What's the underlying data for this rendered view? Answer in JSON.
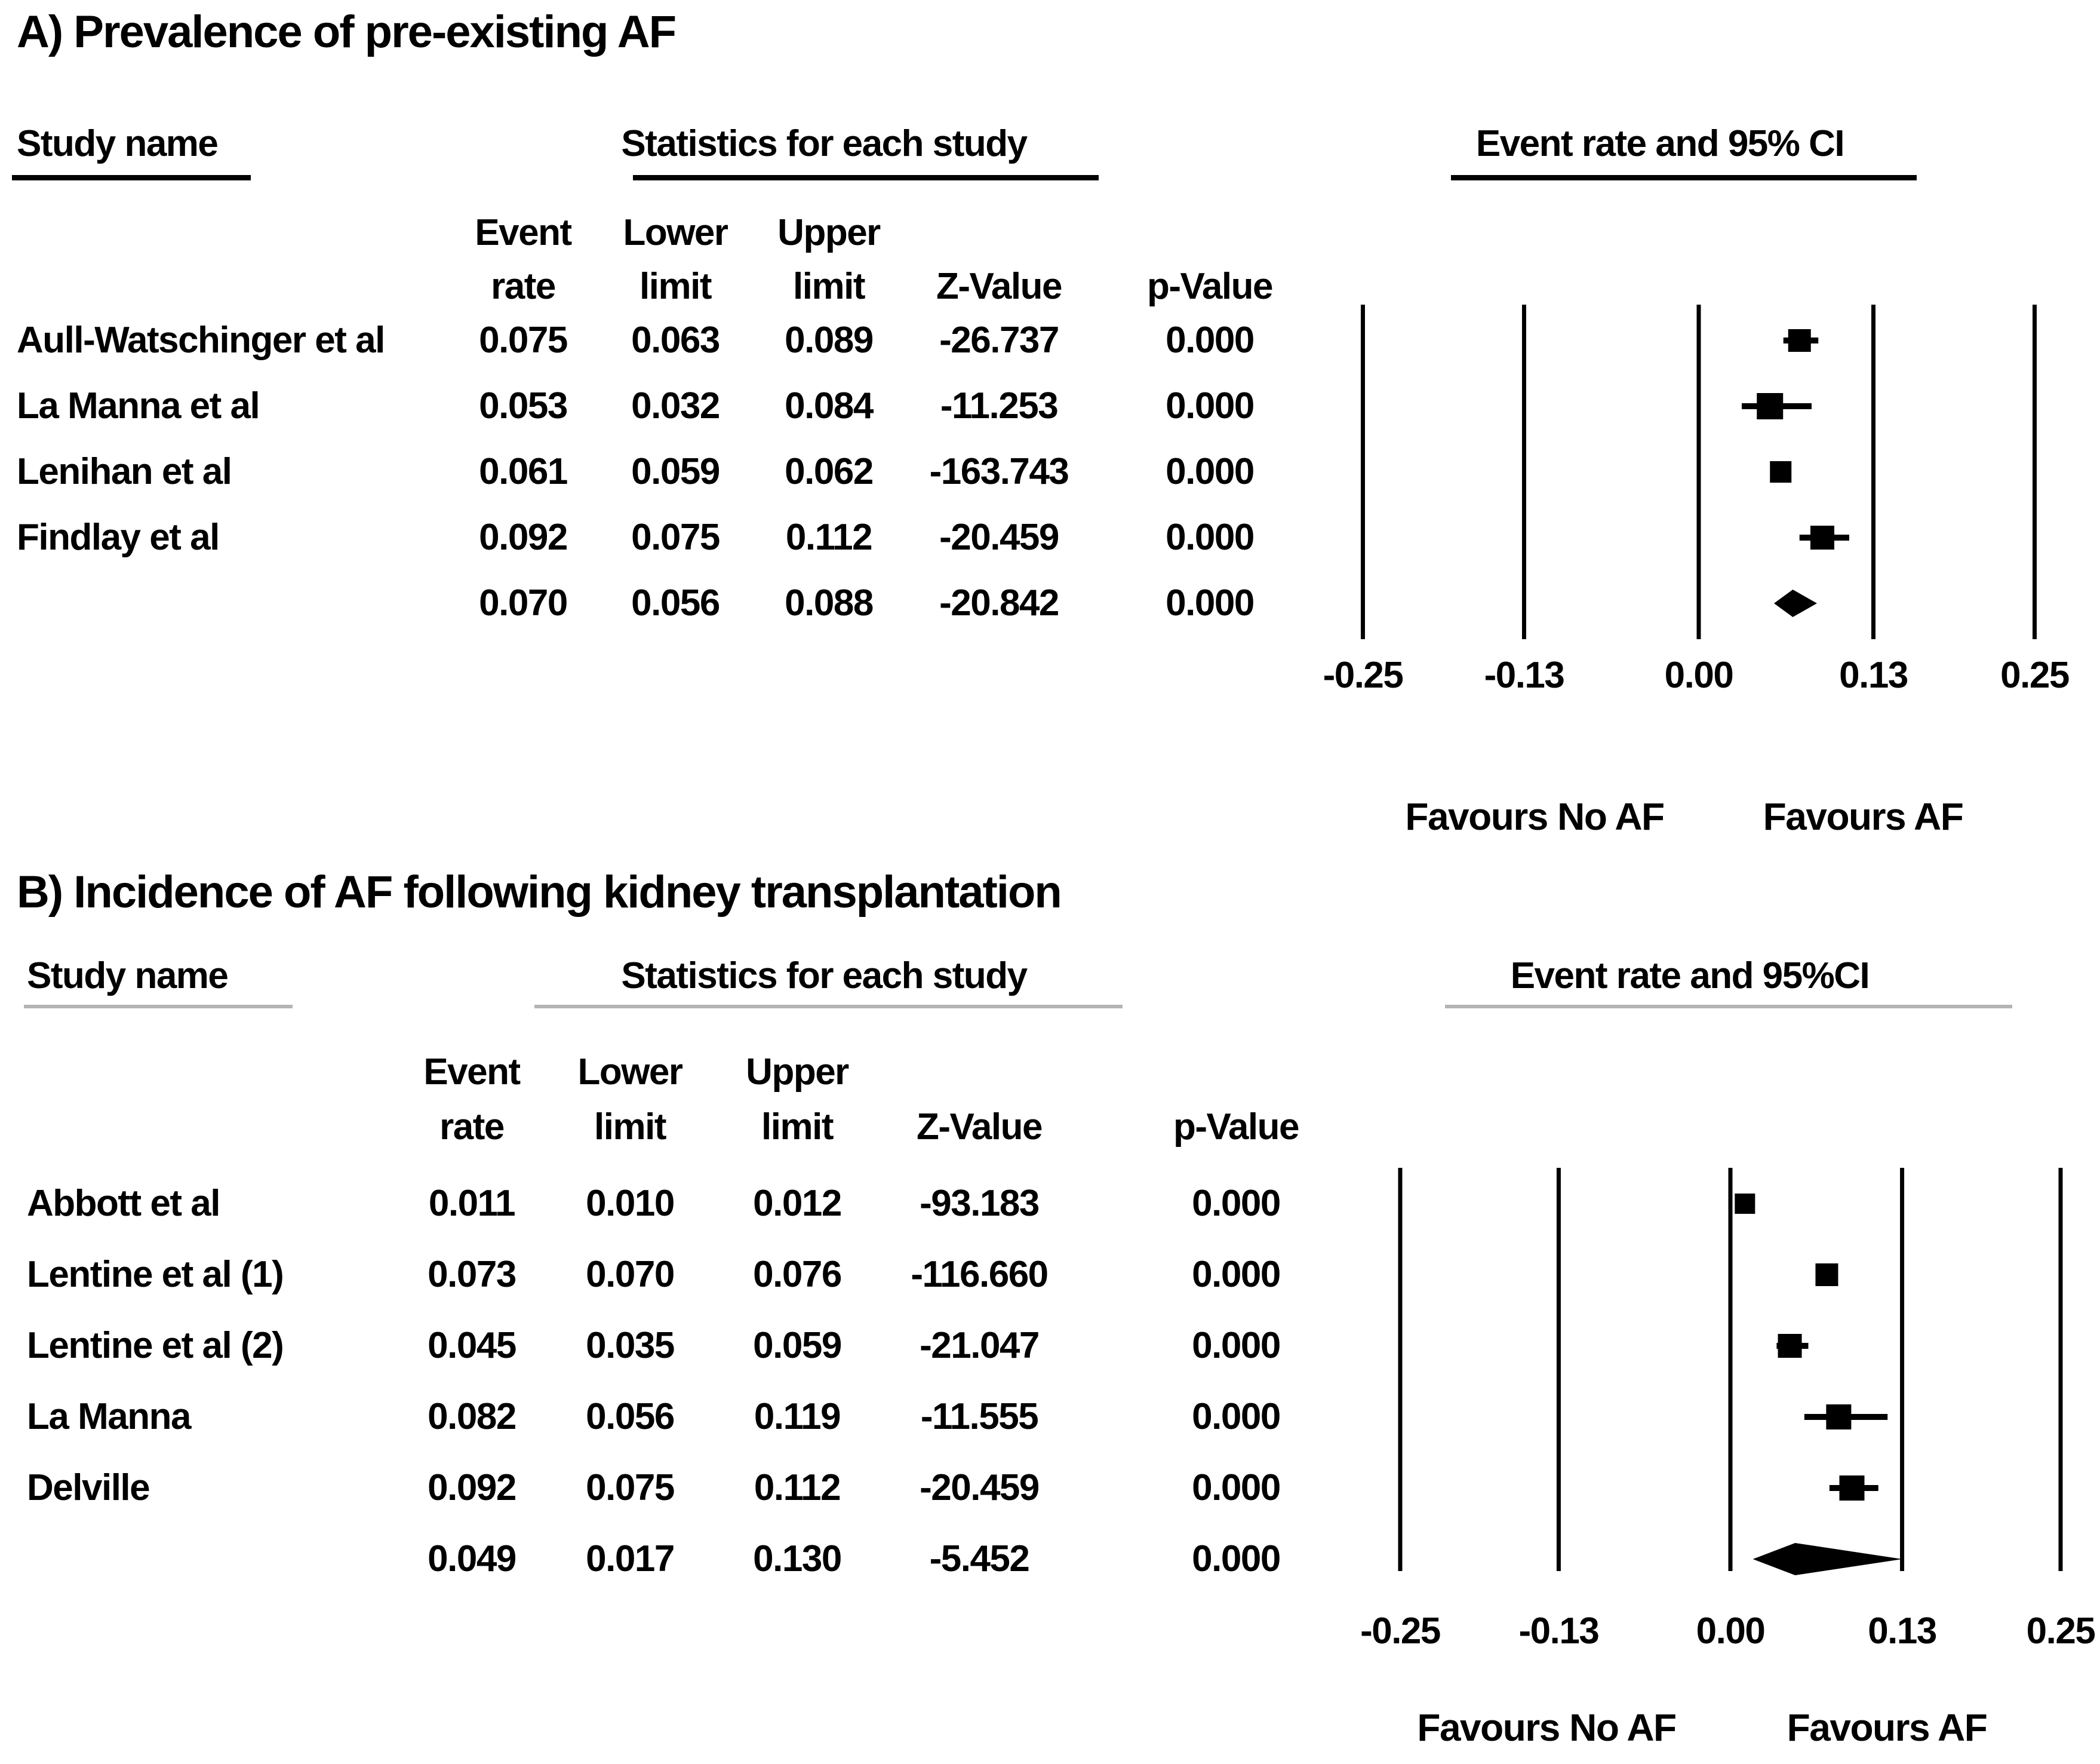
{
  "figure": {
    "panel_a": {
      "title": "A) Prevalence of pre-existing AF",
      "study_col_header": "Study name",
      "stats_col_header": "Statistics for each study",
      "plot_col_header": "Event rate and 95% CI",
      "subheaders_line1": [
        "Event",
        "Lower",
        "Upper"
      ],
      "subheaders_line2": [
        "rate",
        "limit",
        "limit",
        "Z-Value",
        "p-Value"
      ],
      "rows": [
        {
          "study": "Aull-Watschinger et al",
          "event_rate": "0.075",
          "lower_limit": "0.063",
          "upper_limit": "0.089",
          "z_value": "-26.737",
          "p_value": "0.000",
          "marker": "square"
        },
        {
          "study": "La Manna et al",
          "event_rate": "0.053",
          "lower_limit": "0.032",
          "upper_limit": "0.084",
          "z_value": "-11.253",
          "p_value": "0.000",
          "marker": "square"
        },
        {
          "study": "Lenihan et al",
          "event_rate": "0.061",
          "lower_limit": "0.059",
          "upper_limit": "0.062",
          "z_value": "-163.743",
          "p_value": "0.000",
          "marker": "square"
        },
        {
          "study": "Findlay et al",
          "event_rate": "0.092",
          "lower_limit": "0.075",
          "upper_limit": "0.112",
          "z_value": "-20.459",
          "p_value": "0.000",
          "marker": "square"
        },
        {
          "study": "",
          "event_rate": "0.070",
          "lower_limit": "0.056",
          "upper_limit": "0.088",
          "z_value": "-20.842",
          "p_value": "0.000",
          "marker": "diamond"
        }
      ],
      "x_ticks": [
        "-0.25",
        "-0.13",
        "0.00",
        "0.13",
        "0.25"
      ],
      "favours_left": "Favours No AF",
      "favours_right": "Favours AF"
    },
    "panel_b": {
      "title": "B) Incidence of AF following kidney transplantation",
      "study_col_header": "Study name",
      "stats_col_header": "Statistics for each study",
      "plot_col_header": "Event rate and 95%CI",
      "subheaders_line1": [
        "Event",
        "Lower",
        "Upper"
      ],
      "subheaders_line2": [
        "rate",
        "limit",
        "limit",
        "Z-Value",
        "p-Value"
      ],
      "rows": [
        {
          "study": "Abbott et al",
          "event_rate": "0.011",
          "lower_limit": "0.010",
          "upper_limit": "0.012",
          "z_value": "-93.183",
          "p_value": "0.000",
          "marker": "square"
        },
        {
          "study": "Lentine et al (1)",
          "event_rate": "0.073",
          "lower_limit": "0.070",
          "upper_limit": "0.076",
          "z_value": "-116.660",
          "p_value": "0.000",
          "marker": "square"
        },
        {
          "study": "Lentine et al (2)",
          "event_rate": "0.045",
          "lower_limit": "0.035",
          "upper_limit": "0.059",
          "z_value": "-21.047",
          "p_value": "0.000",
          "marker": "square"
        },
        {
          "study": "La Manna",
          "event_rate": "0.082",
          "lower_limit": "0.056",
          "upper_limit": "0.119",
          "z_value": "-11.555",
          "p_value": "0.000",
          "marker": "square"
        },
        {
          "study": "Delville",
          "event_rate": "0.092",
          "lower_limit": "0.075",
          "upper_limit": "0.112",
          "z_value": "-20.459",
          "p_value": "0.000",
          "marker": "square"
        },
        {
          "study": "",
          "event_rate": "0.049",
          "lower_limit": "0.017",
          "upper_limit": "0.130",
          "z_value": "-5.452",
          "p_value": "0.000",
          "marker": "diamond"
        }
      ],
      "x_ticks": [
        "-0.25",
        "-0.13",
        "0.00",
        "0.13",
        "0.25"
      ],
      "favours_left": "Favours No AF",
      "favours_right": "Favours AF"
    }
  },
  "chart_data": [
    {
      "type": "scatter",
      "subtype": "forest-plot",
      "panel": "A",
      "title": "A) Prevalence of pre-existing AF",
      "section_headers": [
        "Study name",
        "Statistics for each study",
        "Event rate and 95% CI"
      ],
      "columns": [
        "Event rate",
        "Lower limit",
        "Upper limit",
        "Z-Value",
        "p-Value"
      ],
      "studies": [
        "Aull-Watschinger et al",
        "La Manna et al",
        "Lenihan et al",
        "Findlay et al"
      ],
      "event_rate": [
        0.075,
        0.053,
        0.061,
        0.092
      ],
      "lower_limit": [
        0.063,
        0.032,
        0.059,
        0.075
      ],
      "upper_limit": [
        0.089,
        0.084,
        0.062,
        0.112
      ],
      "z_value": [
        -26.737,
        -11.253,
        -163.743,
        -20.459
      ],
      "p_value": [
        0.0,
        0.0,
        0.0,
        0.0
      ],
      "summary": {
        "event_rate": 0.07,
        "lower_limit": 0.056,
        "upper_limit": 0.088,
        "z_value": -20.842,
        "p_value": 0.0,
        "marker": "diamond"
      },
      "xlim": [
        -0.25,
        0.25
      ],
      "x_ticks": [
        -0.25,
        -0.13,
        0.0,
        0.13,
        0.25
      ],
      "x_label_left": "Favours No AF",
      "x_label_right": "Favours AF",
      "grid": "vertical gridlines at each x tick",
      "legend": "none",
      "marker_style": "black squares with horizontal 95% CI whiskers; pooled estimate as black diamond"
    },
    {
      "type": "scatter",
      "subtype": "forest-plot",
      "panel": "B",
      "title": "B) Incidence of AF following kidney transplantation",
      "section_headers": [
        "Study name",
        "Statistics for each study",
        "Event rate and 95%CI"
      ],
      "columns": [
        "Event rate",
        "Lower limit",
        "Upper limit",
        "Z-Value",
        "p-Value"
      ],
      "studies": [
        "Abbott et al",
        "Lentine et al (1)",
        "Lentine et al (2)",
        "La Manna",
        "Delville"
      ],
      "event_rate": [
        0.011,
        0.073,
        0.045,
        0.082,
        0.092
      ],
      "lower_limit": [
        0.01,
        0.07,
        0.035,
        0.056,
        0.075
      ],
      "upper_limit": [
        0.012,
        0.076,
        0.059,
        0.119,
        0.112
      ],
      "z_value": [
        -93.183,
        -116.66,
        -21.047,
        -11.555,
        -20.459
      ],
      "p_value": [
        0.0,
        0.0,
        0.0,
        0.0,
        0.0
      ],
      "summary": {
        "event_rate": 0.049,
        "lower_limit": 0.017,
        "upper_limit": 0.13,
        "z_value": -5.452,
        "p_value": 0.0,
        "marker": "diamond"
      },
      "xlim": [
        -0.25,
        0.25
      ],
      "x_ticks": [
        -0.25,
        -0.13,
        0.0,
        0.13,
        0.25
      ],
      "x_label_left": "Favours No AF",
      "x_label_right": "Favours AF",
      "grid": "vertical gridlines at each x tick",
      "legend": "none",
      "marker_style": "black squares with horizontal 95% CI whiskers; pooled estimate as black diamond"
    }
  ]
}
